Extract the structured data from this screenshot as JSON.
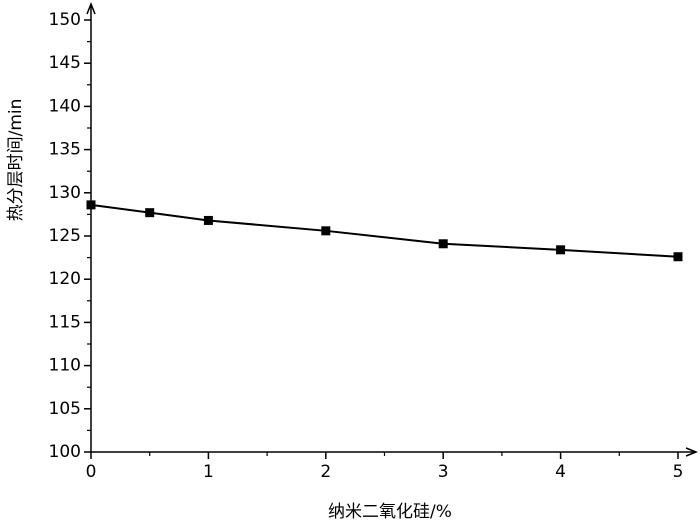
{
  "chart_data": {
    "type": "line",
    "x_label": "纳米二氧化硅/%",
    "y_label": "热分层时间/min",
    "x": [
      0,
      0.5,
      1,
      2,
      3,
      4,
      5
    ],
    "series": [
      {
        "color": "#000000",
        "values": [
          128.6,
          127.7,
          126.8,
          125.6,
          124.1,
          123.4,
          122.6
        ]
      }
    ],
    "xlim": [
      0,
      5
    ],
    "xticks": [
      0,
      1,
      2,
      3,
      4,
      5
    ],
    "ylim": [
      100,
      150
    ],
    "yticks": [
      100,
      105,
      110,
      115,
      120,
      125,
      130,
      135,
      140,
      145,
      150
    ],
    "marker": "square"
  }
}
